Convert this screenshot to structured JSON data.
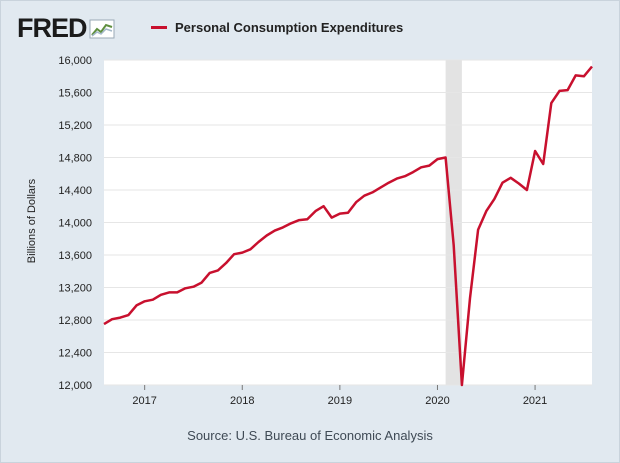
{
  "logo": {
    "text": "FRED"
  },
  "legend": {
    "label": "Personal Consumption Expenditures",
    "color": "#c8102e"
  },
  "source": "Source: U.S. Bureau of Economic Analysis",
  "chart_data": {
    "type": "line",
    "title": "",
    "xlabel": "",
    "ylabel": "Billions of Dollars",
    "ylim": [
      12000,
      16000
    ],
    "yticks": [
      12000,
      12400,
      12800,
      13200,
      13600,
      14000,
      14400,
      14800,
      15200,
      15600,
      16000
    ],
    "ytick_labels": [
      "12,000",
      "12,400",
      "12,800",
      "13,200",
      "13,600",
      "14,000",
      "14,400",
      "14,800",
      "15,200",
      "15,600",
      "16,000"
    ],
    "xlim": [
      "2016-08",
      "2021-08"
    ],
    "xticks": [
      "2017-01",
      "2018-01",
      "2019-01",
      "2020-01",
      "2021-01"
    ],
    "xtick_labels": [
      "2017",
      "2018",
      "2019",
      "2020",
      "2021"
    ],
    "grid": {
      "horizontal": true,
      "vertical": false
    },
    "shaded_regions": [
      {
        "start": "2020-02",
        "end": "2020-04",
        "color": "#e3e3e3"
      }
    ],
    "series": [
      {
        "name": "Personal Consumption Expenditures",
        "color": "#c8102e",
        "x": [
          "2016-08",
          "2016-09",
          "2016-10",
          "2016-11",
          "2016-12",
          "2017-01",
          "2017-02",
          "2017-03",
          "2017-04",
          "2017-05",
          "2017-06",
          "2017-07",
          "2017-08",
          "2017-09",
          "2017-10",
          "2017-11",
          "2017-12",
          "2018-01",
          "2018-02",
          "2018-03",
          "2018-04",
          "2018-05",
          "2018-06",
          "2018-07",
          "2018-08",
          "2018-09",
          "2018-10",
          "2018-11",
          "2018-12",
          "2019-01",
          "2019-02",
          "2019-03",
          "2019-04",
          "2019-05",
          "2019-06",
          "2019-07",
          "2019-08",
          "2019-09",
          "2019-10",
          "2019-11",
          "2019-12",
          "2020-01",
          "2020-02",
          "2020-03",
          "2020-04",
          "2020-05",
          "2020-06",
          "2020-07",
          "2020-08",
          "2020-09",
          "2020-10",
          "2020-11",
          "2020-12",
          "2021-01",
          "2021-02",
          "2021-03",
          "2021-04",
          "2021-05",
          "2021-06",
          "2021-07",
          "2021-08"
        ],
        "values": [
          12750,
          12810,
          12830,
          12860,
          12980,
          13030,
          13050,
          13110,
          13140,
          13140,
          13190,
          13210,
          13260,
          13380,
          13410,
          13500,
          13610,
          13630,
          13670,
          13760,
          13840,
          13900,
          13940,
          13990,
          14030,
          14040,
          14140,
          14200,
          14060,
          14110,
          14120,
          14250,
          14330,
          14370,
          14430,
          14490,
          14540,
          14570,
          14620,
          14680,
          14700,
          14780,
          14800,
          13720,
          12000,
          13070,
          13910,
          14140,
          14290,
          14490,
          14550,
          14480,
          14400,
          14880,
          14720,
          15470,
          15620,
          15630,
          15810,
          15800,
          15920
        ]
      }
    ]
  }
}
